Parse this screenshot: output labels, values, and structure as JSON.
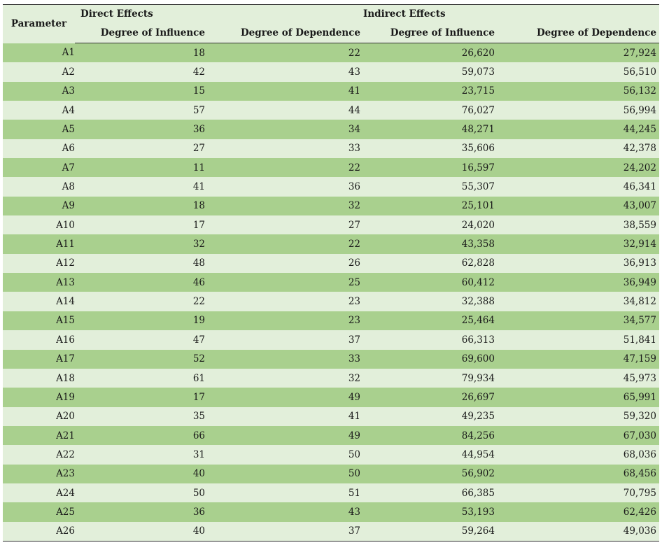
{
  "header": {
    "parameter": "Parameter",
    "direct_effects": "Direct Effects",
    "indirect_effects": "Indirect Effects",
    "columns": [
      "Degree of Influence",
      "Degree of Dependence",
      "Degree of Influence",
      "Degree of Dependence"
    ]
  },
  "rows": [
    {
      "p": "A1",
      "di": "18",
      "dd": "22",
      "ii": "26,620",
      "id": "27,924"
    },
    {
      "p": "A2",
      "di": "42",
      "dd": "43",
      "ii": "59,073",
      "id": "56,510"
    },
    {
      "p": "A3",
      "di": "15",
      "dd": "41",
      "ii": "23,715",
      "id": "56,132"
    },
    {
      "p": "A4",
      "di": "57",
      "dd": "44",
      "ii": "76,027",
      "id": "56,994"
    },
    {
      "p": "A5",
      "di": "36",
      "dd": "34",
      "ii": "48,271",
      "id": "44,245"
    },
    {
      "p": "A6",
      "di": "27",
      "dd": "33",
      "ii": "35,606",
      "id": "42,378"
    },
    {
      "p": "A7",
      "di": "11",
      "dd": "22",
      "ii": "16,597",
      "id": "24,202"
    },
    {
      "p": "A8",
      "di": "41",
      "dd": "36",
      "ii": "55,307",
      "id": "46,341"
    },
    {
      "p": "A9",
      "di": "18",
      "dd": "32",
      "ii": "25,101",
      "id": "43,007"
    },
    {
      "p": "A10",
      "di": "17",
      "dd": "27",
      "ii": "24,020",
      "id": "38,559"
    },
    {
      "p": "A11",
      "di": "32",
      "dd": "22",
      "ii": "43,358",
      "id": "32,914"
    },
    {
      "p": "A12",
      "di": "48",
      "dd": "26",
      "ii": "62,828",
      "id": "36,913"
    },
    {
      "p": "A13",
      "di": "46",
      "dd": "25",
      "ii": "60,412",
      "id": "36,949"
    },
    {
      "p": "A14",
      "di": "22",
      "dd": "23",
      "ii": "32,388",
      "id": "34,812"
    },
    {
      "p": "A15",
      "di": "19",
      "dd": "23",
      "ii": "25,464",
      "id": "34,577"
    },
    {
      "p": "A16",
      "di": "47",
      "dd": "37",
      "ii": "66,313",
      "id": "51,841"
    },
    {
      "p": "A17",
      "di": "52",
      "dd": "33",
      "ii": "69,600",
      "id": "47,159"
    },
    {
      "p": "A18",
      "di": "61",
      "dd": "32",
      "ii": "79,934",
      "id": "45,973"
    },
    {
      "p": "A19",
      "di": "17",
      "dd": "49",
      "ii": "26,697",
      "id": "65,991"
    },
    {
      "p": "A20",
      "di": "35",
      "dd": "41",
      "ii": "49,235",
      "id": "59,320"
    },
    {
      "p": "A21",
      "di": "66",
      "dd": "49",
      "ii": "84,256",
      "id": "67,030"
    },
    {
      "p": "A22",
      "di": "31",
      "dd": "50",
      "ii": "44,954",
      "id": "68,036"
    },
    {
      "p": "A23",
      "di": "40",
      "dd": "50",
      "ii": "56,902",
      "id": "68,456"
    },
    {
      "p": "A24",
      "di": "50",
      "dd": "51",
      "ii": "66,385",
      "id": "70,795"
    },
    {
      "p": "A25",
      "di": "36",
      "dd": "43",
      "ii": "53,193",
      "id": "62,426"
    },
    {
      "p": "A26",
      "di": "40",
      "dd": "37",
      "ii": "59,264",
      "id": "49,036"
    }
  ],
  "colors": {
    "header_bg": "#e2efda",
    "row_dark": "#a9d08e",
    "row_light": "#e2efda"
  }
}
